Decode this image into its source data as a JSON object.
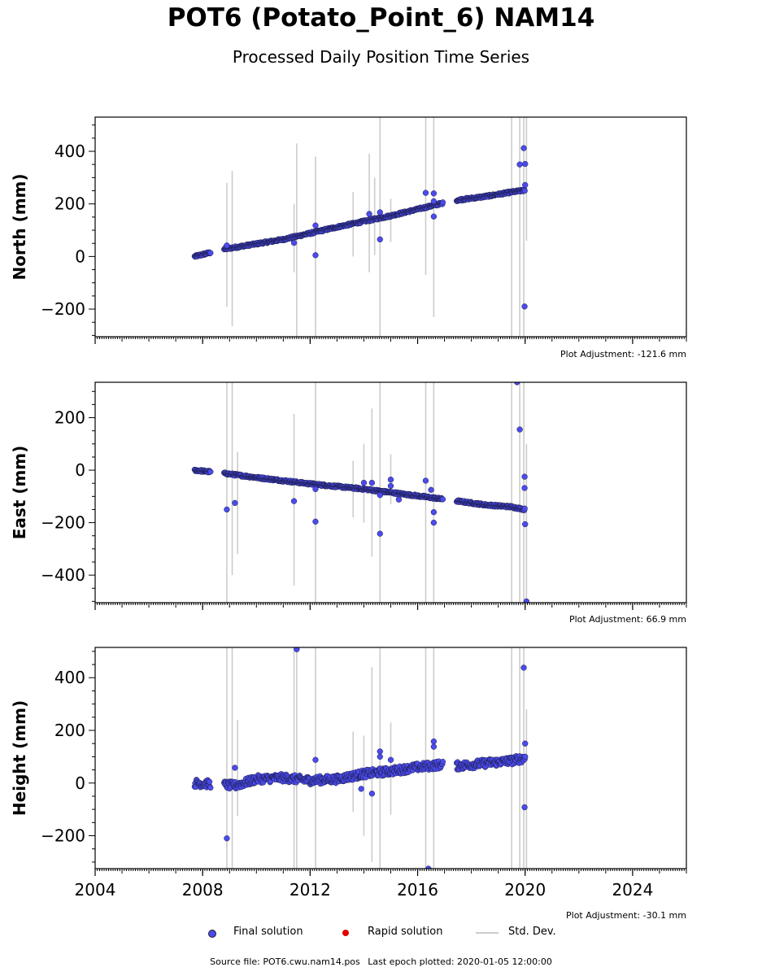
{
  "title": "POT6 (Potato_Point_6) NAM14",
  "subtitle": "Processed Daily Position Time Series",
  "legend": {
    "final_label": "Final solution",
    "rapid_label": "Rapid solution",
    "std_label": "Std. Dev.",
    "final_color": "#4b4bef",
    "rapid_color": "#e00000",
    "std_color": "#cccccc"
  },
  "footer": {
    "source": "Source file: POT6.cwu.nam14.pos",
    "last_epoch": "Last epoch plotted: 2020-01-05 12:00:00"
  },
  "chart_data": [
    {
      "type": "scatter",
      "ylabel": "North (mm)",
      "adjustment": "Plot Adjustment: -121.6 mm",
      "xlim": [
        2004.0,
        2026.0
      ],
      "ylim": [
        -305,
        530
      ],
      "yticks": [
        -200,
        0,
        200,
        400
      ],
      "ytick_labels": [
        "−200",
        "0",
        "200",
        "400"
      ],
      "trend": [
        [
          2007.7,
          0
        ],
        [
          2008.8,
          28
        ],
        [
          2011,
          65
        ],
        [
          2013,
          112
        ],
        [
          2015,
          155
        ],
        [
          2016.9,
          202
        ],
        [
          2017.5,
          215
        ],
        [
          2018.5,
          228
        ],
        [
          2019.5,
          245
        ],
        [
          2020.0,
          252
        ]
      ],
      "outliers": [
        [
          2008.9,
          42
        ],
        [
          2011.4,
          52
        ],
        [
          2012.2,
          5
        ],
        [
          2012.2,
          118
        ],
        [
          2014.2,
          162
        ],
        [
          2014.6,
          168
        ],
        [
          2014.6,
          65
        ],
        [
          2016.3,
          242
        ],
        [
          2016.6,
          240
        ],
        [
          2016.6,
          152
        ],
        [
          2016.6,
          210
        ],
        [
          2019.8,
          350
        ],
        [
          2019.95,
          412
        ],
        [
          2020.0,
          352
        ],
        [
          2020.0,
          272
        ],
        [
          2019.98,
          -190
        ]
      ],
      "errorbars": [
        [
          2008.9,
          -190,
          280
        ],
        [
          2009.1,
          -265,
          325
        ],
        [
          2011.4,
          -60,
          200
        ],
        [
          2011.5,
          -305,
          430
        ],
        [
          2012.2,
          -305,
          380
        ],
        [
          2013.6,
          0,
          245
        ],
        [
          2014.2,
          -60,
          390
        ],
        [
          2014.4,
          5,
          300
        ],
        [
          2014.6,
          -305,
          530
        ],
        [
          2015.0,
          55,
          220
        ],
        [
          2016.3,
          -70,
          530
        ],
        [
          2016.6,
          -230,
          530
        ],
        [
          2019.5,
          -305,
          530
        ],
        [
          2019.8,
          -305,
          530
        ],
        [
          2019.95,
          -305,
          530
        ],
        [
          2020.05,
          60,
          530
        ]
      ]
    },
    {
      "type": "scatter",
      "ylabel": "East (mm)",
      "adjustment": "Plot Adjustment: 66.9 mm",
      "xlim": [
        2004.0,
        2026.0
      ],
      "ylim": [
        -505,
        335
      ],
      "yticks": [
        -400,
        -200,
        0,
        200
      ],
      "ytick_labels": [
        "−400",
        "−200",
        "0",
        "200"
      ],
      "trend": [
        [
          2007.7,
          0
        ],
        [
          2008.8,
          -12
        ],
        [
          2010,
          -28
        ],
        [
          2012,
          -52
        ],
        [
          2014,
          -72
        ],
        [
          2016,
          -98
        ],
        [
          2016.9,
          -110
        ],
        [
          2017.5,
          -118
        ],
        [
          2018.5,
          -132
        ],
        [
          2019.5,
          -140
        ],
        [
          2020.0,
          -150
        ]
      ],
      "outliers": [
        [
          2008.9,
          -150
        ],
        [
          2009.2,
          -125
        ],
        [
          2011.4,
          -118
        ],
        [
          2012.2,
          -196
        ],
        [
          2012.2,
          -72
        ],
        [
          2014.0,
          -48
        ],
        [
          2014.3,
          -48
        ],
        [
          2014.6,
          -242
        ],
        [
          2014.6,
          -95
        ],
        [
          2015.0,
          -36
        ],
        [
          2015.0,
          -60
        ],
        [
          2015.3,
          -112
        ],
        [
          2016.3,
          -40
        ],
        [
          2016.5,
          -75
        ],
        [
          2016.6,
          -160
        ],
        [
          2016.6,
          -200
        ],
        [
          2019.7,
          335
        ],
        [
          2019.8,
          155
        ],
        [
          2019.98,
          -25
        ],
        [
          2019.98,
          -68
        ],
        [
          2020.0,
          -206
        ],
        [
          2020.05,
          -500
        ]
      ],
      "errorbars": [
        [
          2008.9,
          -505,
          335
        ],
        [
          2009.1,
          -400,
          335
        ],
        [
          2009.3,
          -320,
          70
        ],
        [
          2011.4,
          -440,
          215
        ],
        [
          2012.2,
          -505,
          335
        ],
        [
          2013.6,
          -180,
          35
        ],
        [
          2014.0,
          -200,
          100
        ],
        [
          2014.3,
          -330,
          235
        ],
        [
          2014.6,
          -505,
          335
        ],
        [
          2015.0,
          -130,
          60
        ],
        [
          2016.3,
          -505,
          335
        ],
        [
          2016.6,
          -505,
          335
        ],
        [
          2019.5,
          -505,
          335
        ],
        [
          2019.8,
          -505,
          335
        ],
        [
          2019.95,
          -505,
          335
        ],
        [
          2020.05,
          -505,
          100
        ]
      ]
    },
    {
      "type": "scatter",
      "ylabel": "Height (mm)",
      "adjustment": "Plot Adjustment: -30.1 mm",
      "xlim": [
        2004.0,
        2026.0
      ],
      "ylim": [
        -325,
        515
      ],
      "yticks": [
        -200,
        0,
        200,
        400
      ],
      "ytick_labels": [
        "−200",
        "0",
        "200",
        "400"
      ],
      "xticks": [
        2004,
        2008,
        2012,
        2016,
        2020,
        2024
      ],
      "xtick_labels": [
        "2004",
        "2008",
        "2012",
        "2016",
        "2020",
        "2024"
      ],
      "trend": [
        [
          2007.7,
          0
        ],
        [
          2008.5,
          -5
        ],
        [
          2009.2,
          -10
        ],
        [
          2010,
          15
        ],
        [
          2011,
          20
        ],
        [
          2012,
          10
        ],
        [
          2013,
          15
        ],
        [
          2014,
          35
        ],
        [
          2015,
          45
        ],
        [
          2016,
          60
        ],
        [
          2016.9,
          70
        ],
        [
          2017.5,
          65
        ],
        [
          2018.5,
          75
        ],
        [
          2019.5,
          85
        ],
        [
          2020.0,
          95
        ]
      ],
      "outliers": [
        [
          2008.9,
          -210
        ],
        [
          2009.2,
          58
        ],
        [
          2011.5,
          508
        ],
        [
          2012.2,
          88
        ],
        [
          2013.9,
          -22
        ],
        [
          2014.3,
          -40
        ],
        [
          2014.6,
          120
        ],
        [
          2014.6,
          100
        ],
        [
          2015.0,
          88
        ],
        [
          2016.4,
          -325
        ],
        [
          2016.6,
          158
        ],
        [
          2016.6,
          138
        ],
        [
          2019.95,
          438
        ],
        [
          2020.0,
          150
        ],
        [
          2019.98,
          -92
        ],
        [
          2020.0,
          100
        ]
      ],
      "errorbars": [
        [
          2008.9,
          -325,
          515
        ],
        [
          2009.1,
          -325,
          515
        ],
        [
          2009.3,
          -125,
          240
        ],
        [
          2011.4,
          -325,
          515
        ],
        [
          2011.5,
          -325,
          515
        ],
        [
          2012.2,
          -325,
          515
        ],
        [
          2013.6,
          -110,
          195
        ],
        [
          2014.0,
          -200,
          180
        ],
        [
          2014.3,
          -300,
          440
        ],
        [
          2014.6,
          -325,
          515
        ],
        [
          2015.0,
          -120,
          230
        ],
        [
          2016.3,
          -325,
          515
        ],
        [
          2016.6,
          -325,
          515
        ],
        [
          2019.5,
          -325,
          515
        ],
        [
          2019.8,
          -325,
          515
        ],
        [
          2019.95,
          -325,
          515
        ],
        [
          2020.05,
          -325,
          280
        ]
      ]
    }
  ]
}
